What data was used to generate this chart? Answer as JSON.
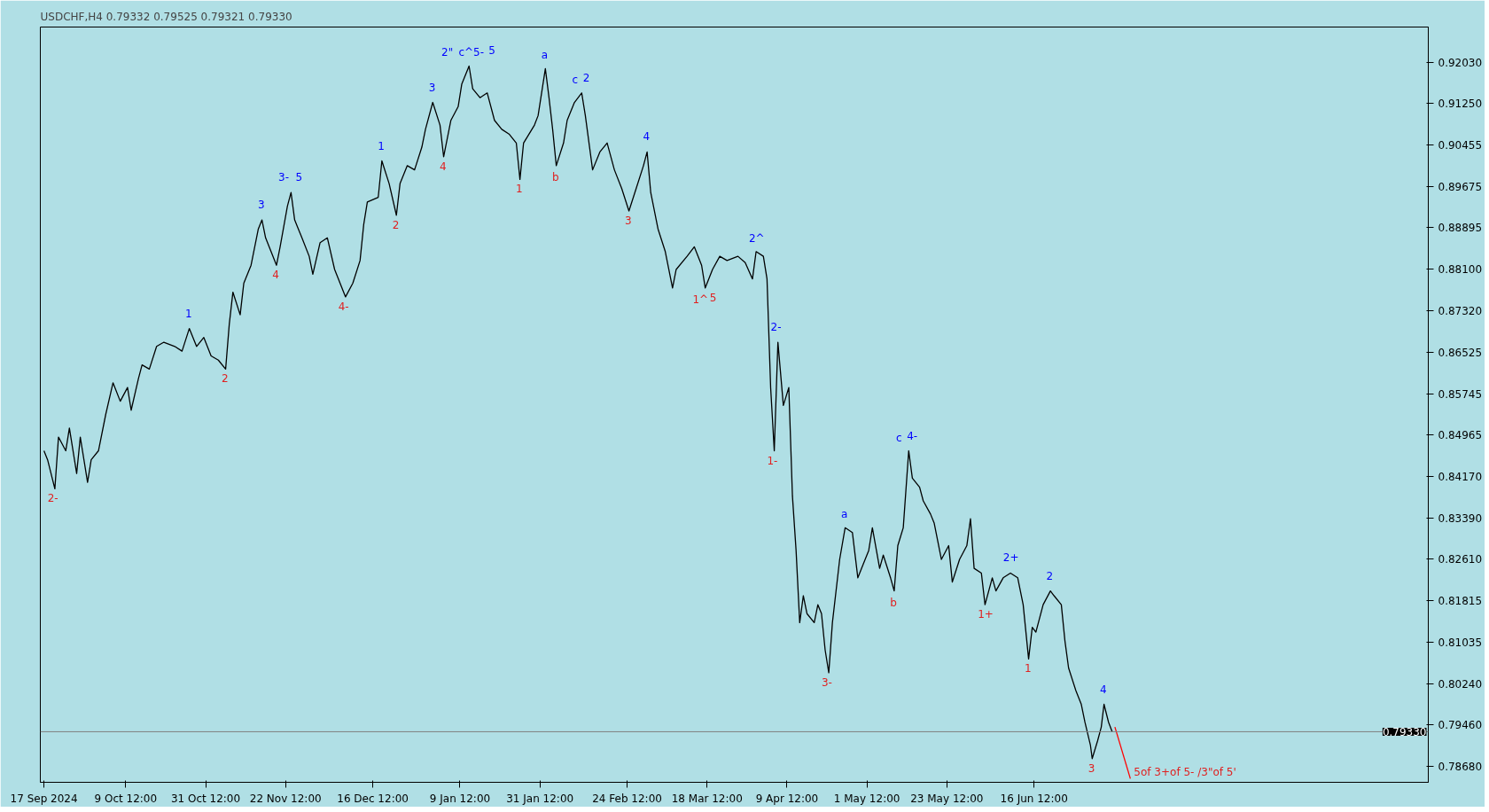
{
  "chart_data": {
    "type": "line",
    "title": "USDCHF,H4  0.79332 0.79525 0.79321 0.79330",
    "xlim": [
      "2024-09-16",
      "2025-10-03"
    ],
    "ylim": [
      0.7837,
      0.927
    ],
    "xticks": [
      {
        "value": "2024-09-17",
        "label": "17 Sep 2024"
      },
      {
        "value": "2024-10-09T12:00",
        "label": "9 Oct 12:00"
      },
      {
        "value": "2024-10-31T12:00",
        "label": "31 Oct 12:00"
      },
      {
        "value": "2024-11-22T12:00",
        "label": "22 Nov 12:00"
      },
      {
        "value": "2024-12-16T12:00",
        "label": "16 Dec 12:00"
      },
      {
        "value": "2025-01-09T12:00",
        "label": "9 Jan 12:00"
      },
      {
        "value": "2025-01-31T12:00",
        "label": "31 Jan 12:00"
      },
      {
        "value": "2025-02-24T12:00",
        "label": "24 Feb 12:00"
      },
      {
        "value": "2025-03-18T12:00",
        "label": "18 Mar 12:00"
      },
      {
        "value": "2025-04-09T12:00",
        "label": "9 Apr 12:00"
      },
      {
        "value": "2025-05-01T12:00",
        "label": "1 May 12:00"
      },
      {
        "value": "2025-05-23T12:00",
        "label": "23 May 12:00"
      },
      {
        "value": "2025-06-16T12:00",
        "label": "16 Jun 12:00"
      }
    ],
    "yticks": [
      {
        "value": 0.7868,
        "label": "0.78680"
      },
      {
        "value": 0.7946,
        "label": "0.79460"
      },
      {
        "value": 0.8024,
        "label": "0.80240"
      },
      {
        "value": 0.81035,
        "label": "0.81035"
      },
      {
        "value": 0.81815,
        "label": "0.81815"
      },
      {
        "value": 0.8261,
        "label": "0.82610"
      },
      {
        "value": 0.8339,
        "label": "0.83390"
      },
      {
        "value": 0.8417,
        "label": "0.84170"
      },
      {
        "value": 0.84965,
        "label": "0.84965"
      },
      {
        "value": 0.85745,
        "label": "0.85745"
      },
      {
        "value": 0.86525,
        "label": "0.86525"
      },
      {
        "value": 0.8732,
        "label": "0.87320"
      },
      {
        "value": 0.881,
        "label": "0.88100"
      },
      {
        "value": 0.88895,
        "label": "0.88895"
      },
      {
        "value": 0.89675,
        "label": "0.89675"
      },
      {
        "value": 0.90455,
        "label": "0.90455"
      },
      {
        "value": 0.9125,
        "label": "0.91250"
      },
      {
        "value": 0.9203,
        "label": "0.92030"
      }
    ],
    "grid": false,
    "series": [
      {
        "color": "#000000",
        "x": [
          "2024-09-17",
          "2024-09-18",
          "2024-09-20",
          "2024-09-21",
          "2024-09-23",
          "2024-09-24",
          "2024-09-26",
          "2024-09-27",
          "2024-09-29",
          "2024-09-30",
          "2024-10-02",
          "2024-10-04",
          "2024-10-06",
          "2024-10-08",
          "2024-10-10",
          "2024-10-11",
          "2024-10-13",
          "2024-10-14",
          "2024-10-16",
          "2024-10-18",
          "2024-10-20",
          "2024-10-23",
          "2024-10-25",
          "2024-10-27",
          "2024-10-29",
          "2024-10-31",
          "2024-11-02",
          "2024-11-04",
          "2024-11-06",
          "2024-11-07",
          "2024-11-08",
          "2024-11-10",
          "2024-11-11",
          "2024-11-13",
          "2024-11-15",
          "2024-11-16",
          "2024-11-17",
          "2024-11-20",
          "2024-11-21",
          "2024-11-23",
          "2024-11-24",
          "2024-11-25",
          "2024-11-27",
          "2024-11-29",
          "2024-11-30",
          "2024-12-02",
          "2024-12-04",
          "2024-12-06",
          "2024-12-09",
          "2024-12-11",
          "2024-12-13",
          "2024-12-14",
          "2024-12-15",
          "2024-12-18",
          "2024-12-19",
          "2024-12-21",
          "2024-12-23",
          "2024-12-24",
          "2024-12-26",
          "2024-12-28",
          "2024-12-30",
          "2024-12-31",
          "2025-01-02",
          "2025-01-04",
          "2025-01-05",
          "2025-01-07",
          "2025-01-09",
          "2025-01-10",
          "2025-01-12",
          "2025-01-13",
          "2025-01-15",
          "2025-01-17",
          "2025-01-19",
          "2025-01-21",
          "2025-01-23",
          "2025-01-25",
          "2025-01-26",
          "2025-01-27",
          "2025-01-30",
          "2025-01-31",
          "2025-02-02",
          "2025-02-03",
          "2025-02-04",
          "2025-02-05",
          "2025-02-07",
          "2025-02-08",
          "2025-02-10",
          "2025-02-12",
          "2025-02-13",
          "2025-02-15",
          "2025-02-17",
          "2025-02-19",
          "2025-02-21",
          "2025-02-23",
          "2025-02-25",
          "2025-02-27",
          "2025-03-01",
          "2025-03-02",
          "2025-03-03",
          "2025-03-05",
          "2025-03-07",
          "2025-03-09",
          "2025-03-10",
          "2025-03-13",
          "2025-03-15",
          "2025-03-17",
          "2025-03-18",
          "2025-03-20",
          "2025-03-22",
          "2025-03-24",
          "2025-03-27",
          "2025-03-29",
          "2025-03-31",
          "2025-04-01",
          "2025-04-03",
          "2025-04-04",
          "2025-04-04T12:00",
          "2025-04-05",
          "2025-04-06",
          "2025-04-07",
          "2025-04-08T12:00",
          "2025-04-10",
          "2025-04-11",
          "2025-04-12",
          "2025-04-13",
          "2025-04-14",
          "2025-04-15",
          "2025-04-17",
          "2025-04-18",
          "2025-04-19",
          "2025-04-20",
          "2025-04-21",
          "2025-04-22",
          "2025-04-24",
          "2025-04-25T12:00",
          "2025-04-27T12:00",
          "2025-04-29",
          "2025-04-30T12:00",
          "2025-05-02",
          "2025-05-03",
          "2025-05-05",
          "2025-05-06",
          "2025-05-08",
          "2025-05-09",
          "2025-05-10",
          "2025-05-11T12:00",
          "2025-05-13",
          "2025-05-14",
          "2025-05-16",
          "2025-05-17",
          "2025-05-19",
          "2025-05-20",
          "2025-05-22",
          "2025-05-24",
          "2025-05-25",
          "2025-05-27",
          "2025-05-29",
          "2025-05-30",
          "2025-05-31",
          "2025-06-02",
          "2025-06-03",
          "2025-06-05",
          "2025-06-06",
          "2025-06-08",
          "2025-06-10",
          "2025-06-12",
          "2025-06-13T12:00",
          "2025-06-15",
          "2025-06-16",
          "2025-06-17",
          "2025-06-19",
          "2025-06-21",
          "2025-06-22",
          "2025-06-24",
          "2025-06-25",
          "2025-06-26",
          "2025-06-28",
          "2025-06-29T12:00",
          "2025-06-30T12:00",
          "2025-07-02",
          "2025-07-02T12:00",
          "2025-07-04",
          "2025-07-05",
          "2025-07-05T18:00",
          "2025-07-07",
          "2025-07-08"
        ],
        "values": [
          0.8466,
          0.8449,
          0.8394,
          0.8492,
          0.8466,
          0.8509,
          0.8423,
          0.8492,
          0.8406,
          0.8449,
          0.8466,
          0.8535,
          0.8595,
          0.856,
          0.8586,
          0.8543,
          0.8603,
          0.8629,
          0.8621,
          0.8664,
          0.8672,
          0.8664,
          0.8655,
          0.8698,
          0.8664,
          0.8681,
          0.8646,
          0.8638,
          0.8621,
          0.8706,
          0.8767,
          0.8724,
          0.8784,
          0.8818,
          0.8887,
          0.8904,
          0.887,
          0.8818,
          0.8853,
          0.893,
          0.8956,
          0.8904,
          0.887,
          0.8835,
          0.8801,
          0.8861,
          0.887,
          0.881,
          0.8758,
          0.8784,
          0.8827,
          0.8895,
          0.8938,
          0.8947,
          0.9016,
          0.8973,
          0.8913,
          0.8973,
          0.9007,
          0.8999,
          0.9042,
          0.9076,
          0.9127,
          0.9084,
          0.9024,
          0.9093,
          0.9119,
          0.9162,
          0.9196,
          0.9153,
          0.9136,
          0.9145,
          0.9093,
          0.9076,
          0.9067,
          0.905,
          0.8981,
          0.905,
          0.9084,
          0.9102,
          0.9191,
          0.9136,
          0.9076,
          0.9007,
          0.905,
          0.9093,
          0.9127,
          0.9145,
          0.9102,
          0.8999,
          0.9033,
          0.905,
          0.8999,
          0.8964,
          0.8921,
          0.8964,
          0.9007,
          0.9033,
          0.8956,
          0.8887,
          0.8844,
          0.8775,
          0.881,
          0.8835,
          0.8853,
          0.8818,
          0.8775,
          0.881,
          0.8835,
          0.8827,
          0.8835,
          0.8823,
          0.8792,
          0.8844,
          0.8835,
          0.8792,
          0.8689,
          0.8586,
          0.8466,
          0.8672,
          0.8552,
          0.8586,
          0.838,
          0.8277,
          0.814,
          0.8191,
          0.8157,
          0.814,
          0.8174,
          0.8157,
          0.8088,
          0.8045,
          0.814,
          0.826,
          0.832,
          0.8311,
          0.8225,
          0.8251,
          0.8277,
          0.832,
          0.8243,
          0.8268,
          0.8225,
          0.82,
          0.8286,
          0.832,
          0.8466,
          0.8414,
          0.8397,
          0.8371,
          0.8346,
          0.8329,
          0.826,
          0.8286,
          0.8217,
          0.826,
          0.8286,
          0.8337,
          0.8243,
          0.8234,
          0.8174,
          0.8225,
          0.82,
          0.8225,
          0.8234,
          0.8225,
          0.8174,
          0.8071,
          0.8131,
          0.8122,
          0.8174,
          0.82,
          0.8191,
          0.8174,
          0.8105,
          0.8054,
          0.8011,
          0.7985,
          0.7951,
          0.7908,
          0.7882,
          0.7916,
          0.7942,
          0.7985,
          0.7951,
          0.7933
        ]
      },
      {
        "color": "#ff0000",
        "x": [
          "2025-07-08T18:00",
          "2025-07-13"
        ],
        "values": [
          0.7942,
          0.7844
        ]
      }
    ],
    "ref_lines": [
      {
        "axis": "y",
        "value": 0.7933,
        "label": "0.79330",
        "color": "#808080"
      }
    ],
    "annotations": [
      {
        "text": "2-",
        "x": "2024-09-20",
        "y": 0.8394
      },
      {
        "text": "1",
        "x": "2024-10-27",
        "y": 0.8698
      },
      {
        "text": "2",
        "x": "2024-11-06",
        "y": 0.8621
      },
      {
        "text": "3",
        "x": "2024-11-16",
        "y": 0.8904
      },
      {
        "text": "3-",
        "x": "2024-11-24",
        "y": 0.8956
      },
      {
        "text": "5",
        "x": "2024-11-24",
        "y": 0.8956
      },
      {
        "text": "4",
        "x": "2024-11-20",
        "y": 0.8818
      },
      {
        "text": "4-",
        "x": "2024-12-09",
        "y": 0.8758
      },
      {
        "text": "1",
        "x": "2024-12-19",
        "y": 0.9016
      },
      {
        "text": "2",
        "x": "2024-12-23",
        "y": 0.8913
      },
      {
        "text": "3",
        "x": "2025-01-02",
        "y": 0.9127
      },
      {
        "text": "4",
        "x": "2025-01-05",
        "y": 0.9024
      },
      {
        "text": "2\"",
        "x": "2025-01-12",
        "y": 0.9196
      },
      {
        "text": "c^5-",
        "x": "2025-01-12",
        "y": 0.9196
      },
      {
        "text": "5",
        "x": "2025-01-12",
        "y": 0.9196
      },
      {
        "text": "1",
        "x": "2025-01-26",
        "y": 0.8981
      },
      {
        "text": "a",
        "x": "2025-02-02",
        "y": 0.9191
      },
      {
        "text": "b",
        "x": "2025-02-05",
        "y": 0.9007
      },
      {
        "text": "c",
        "x": "2025-02-12",
        "y": 0.9145
      },
      {
        "text": "2",
        "x": "2025-02-12",
        "y": 0.9145
      },
      {
        "text": "3",
        "x": "2025-02-25",
        "y": 0.8921
      },
      {
        "text": "4",
        "x": "2025-03-02",
        "y": 0.9033
      },
      {
        "text": "1^",
        "x": "2025-03-18",
        "y": 0.8775
      },
      {
        "text": "5",
        "x": "2025-03-18",
        "y": 0.8775
      },
      {
        "text": "2^",
        "x": "2025-04-01",
        "y": 0.8844
      },
      {
        "text": "2-",
        "x": "2025-04-07",
        "y": 0.8672
      },
      {
        "text": "1-",
        "x": "2025-04-06",
        "y": 0.8466
      },
      {
        "text": "3-",
        "x": "2025-04-21",
        "y": 0.8045
      },
      {
        "text": "a",
        "x": "2025-04-25T12:00",
        "y": 0.832
      },
      {
        "text": "b",
        "x": "2025-05-09",
        "y": 0.82
      },
      {
        "text": "c",
        "x": "2025-05-13",
        "y": 0.8466
      },
      {
        "text": "4-",
        "x": "2025-05-13",
        "y": 0.8466
      },
      {
        "text": "1+",
        "x": "2025-06-03",
        "y": 0.8174
      },
      {
        "text": "2+",
        "x": "2025-06-10",
        "y": 0.8234
      },
      {
        "text": "1",
        "x": "2025-06-15",
        "y": 0.8071
      },
      {
        "text": "2",
        "x": "2025-06-21",
        "y": 0.82
      },
      {
        "text": "3",
        "x": "2025-07-02T12:00",
        "y": 0.7882
      },
      {
        "text": "4",
        "x": "2025-07-05T18:00",
        "y": 0.7985
      },
      {
        "text": "5of 3+of 5- /3\"of 5'",
        "x": "2025-07-13",
        "y": 0.7844
      }
    ]
  }
}
